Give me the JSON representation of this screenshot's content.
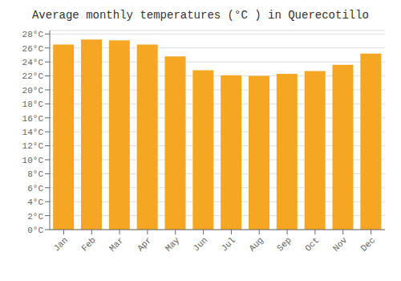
{
  "chart_data": {
    "type": "bar",
    "title": "Average monthly temperatures (°C ) in Querecotillo",
    "categories": [
      "Jan",
      "Feb",
      "Mar",
      "Apr",
      "May",
      "Jun",
      "Jul",
      "Aug",
      "Sep",
      "Oct",
      "Nov",
      "Dec"
    ],
    "values": [
      26.5,
      27.2,
      27.1,
      26.5,
      24.8,
      22.8,
      22.1,
      22.0,
      22.3,
      22.7,
      23.6,
      25.2
    ],
    "color": "#F5A623",
    "ylim": [
      0,
      28.5
    ],
    "yticks": [
      {
        "value": 0,
        "label": "0°C"
      },
      {
        "value": 2,
        "label": "2°C"
      },
      {
        "value": 4,
        "label": "4°C"
      },
      {
        "value": 6,
        "label": "6°C"
      },
      {
        "value": 8,
        "label": "8°C"
      },
      {
        "value": 10,
        "label": "10°C"
      },
      {
        "value": 12,
        "label": "12°C"
      },
      {
        "value": 14,
        "label": "14°C"
      },
      {
        "value": 16,
        "label": "16°C"
      },
      {
        "value": 18,
        "label": "18°C"
      },
      {
        "value": 20,
        "label": "20°C"
      },
      {
        "value": 22,
        "label": "22°C"
      },
      {
        "value": 24,
        "label": "24°C"
      },
      {
        "value": 26,
        "label": "26°C"
      },
      {
        "value": 28,
        "label": "28°C"
      }
    ],
    "grid": true
  }
}
